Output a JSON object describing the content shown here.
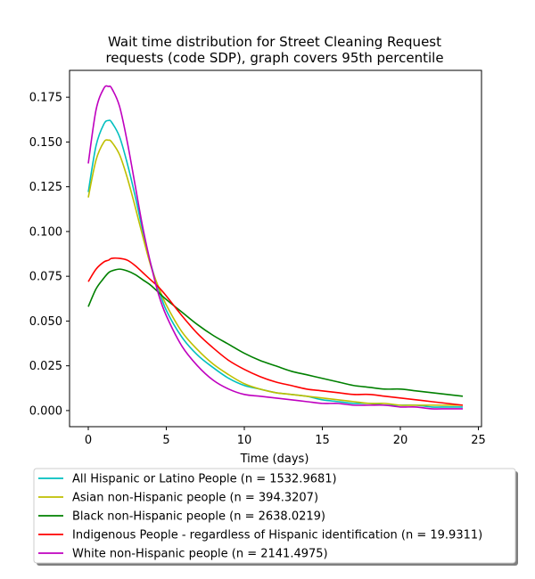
{
  "chart_data": {
    "type": "line",
    "title_lines": [
      "Wait time distribution  for Street Cleaning Request",
      "requests (code SDP), graph covers 95th percentile"
    ],
    "xlabel": "Time (days)",
    "ylabel": "",
    "xlim": [
      -1.2,
      25.2
    ],
    "ylim": [
      -0.009,
      0.19
    ],
    "xticks": [
      0,
      5,
      10,
      15,
      20,
      25
    ],
    "yticks": [
      "0.000",
      "0.025",
      "0.050",
      "0.075",
      "0.100",
      "0.125",
      "0.150",
      "0.175"
    ],
    "grid": false,
    "legend_position": "below plot",
    "x": [
      0,
      0.5,
      1,
      1.3,
      1.5,
      2,
      2.5,
      3,
      3.5,
      4,
      4.5,
      5,
      6,
      7,
      8,
      9,
      10,
      11,
      12,
      13,
      14,
      15,
      16,
      17,
      18,
      19,
      20,
      21,
      22,
      23,
      24
    ],
    "series": [
      {
        "name": "All Hispanic or Latino People (n = 1532.9681)",
        "color": "#00bfbf",
        "values": [
          0.122,
          0.148,
          0.16,
          0.162,
          0.161,
          0.153,
          0.138,
          0.12,
          0.1,
          0.082,
          0.068,
          0.056,
          0.041,
          0.031,
          0.024,
          0.018,
          0.014,
          0.012,
          0.01,
          0.009,
          0.008,
          0.006,
          0.005,
          0.004,
          0.004,
          0.003,
          0.003,
          0.003,
          0.002,
          0.002,
          0.002
        ]
      },
      {
        "name": "Asian non-Hispanic people (n = 394.3207)",
        "color": "#bfbf00",
        "values": [
          0.119,
          0.14,
          0.15,
          0.151,
          0.15,
          0.143,
          0.13,
          0.114,
          0.097,
          0.081,
          0.069,
          0.059,
          0.044,
          0.034,
          0.026,
          0.02,
          0.015,
          0.012,
          0.01,
          0.009,
          0.008,
          0.007,
          0.006,
          0.005,
          0.004,
          0.004,
          0.003,
          0.003,
          0.003,
          0.003,
          0.003
        ]
      },
      {
        "name": "Black non-Hispanic people (n = 2638.0219)",
        "color": "#008000",
        "values": [
          0.058,
          0.068,
          0.074,
          0.077,
          0.078,
          0.079,
          0.078,
          0.076,
          0.073,
          0.07,
          0.066,
          0.062,
          0.055,
          0.048,
          0.042,
          0.037,
          0.032,
          0.028,
          0.025,
          0.022,
          0.02,
          0.018,
          0.016,
          0.014,
          0.013,
          0.012,
          0.012,
          0.011,
          0.01,
          0.009,
          0.008
        ]
      },
      {
        "name": "Indigenous People - regardless of Hispanic identification (n = 19.9311)",
        "color": "#ff0000",
        "values": [
          0.072,
          0.079,
          0.083,
          0.084,
          0.085,
          0.085,
          0.084,
          0.081,
          0.077,
          0.073,
          0.069,
          0.064,
          0.053,
          0.043,
          0.035,
          0.028,
          0.023,
          0.019,
          0.016,
          0.014,
          0.012,
          0.011,
          0.01,
          0.009,
          0.009,
          0.008,
          0.007,
          0.006,
          0.005,
          0.004,
          0.003
        ]
      },
      {
        "name": "White non-Hispanic people (n = 2141.4975)",
        "color": "#bf00bf",
        "values": [
          0.138,
          0.168,
          0.18,
          0.181,
          0.18,
          0.17,
          0.15,
          0.126,
          0.102,
          0.082,
          0.065,
          0.053,
          0.036,
          0.025,
          0.017,
          0.012,
          0.009,
          0.008,
          0.007,
          0.006,
          0.005,
          0.004,
          0.004,
          0.003,
          0.003,
          0.003,
          0.002,
          0.002,
          0.001,
          0.001,
          0.001
        ]
      }
    ]
  }
}
